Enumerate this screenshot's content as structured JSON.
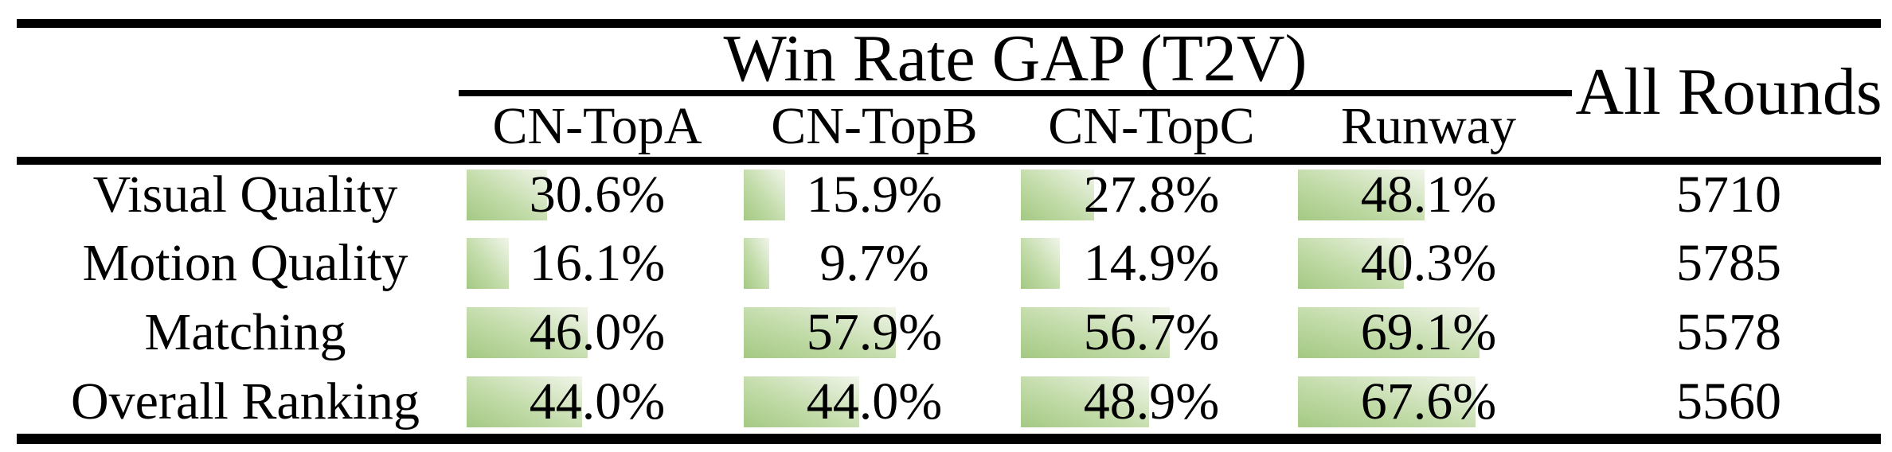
{
  "table": {
    "group_header": "Win Rate GAP (T2V)",
    "all_rounds_header": "All Rounds",
    "columns": [
      "CN-TopA",
      "CN-TopB",
      "CN-TopC",
      "Runway"
    ],
    "rows": [
      {
        "label": "Visual Quality",
        "cells": [
          {
            "pct": 30.6,
            "text": "30.6%"
          },
          {
            "pct": 15.9,
            "text": "15.9%"
          },
          {
            "pct": 27.8,
            "text": "27.8%"
          },
          {
            "pct": 48.1,
            "text": "48.1%"
          }
        ],
        "all_rounds": "5710"
      },
      {
        "label": "Motion Quality",
        "cells": [
          {
            "pct": 16.1,
            "text": "16.1%"
          },
          {
            "pct": 9.7,
            "text": "9.7%"
          },
          {
            "pct": 14.9,
            "text": "14.9%"
          },
          {
            "pct": 40.3,
            "text": "40.3%"
          }
        ],
        "all_rounds": "5785"
      },
      {
        "label": "Matching",
        "cells": [
          {
            "pct": 46.0,
            "text": "46.0%"
          },
          {
            "pct": 57.9,
            "text": "57.9%"
          },
          {
            "pct": 56.7,
            "text": "56.7%"
          },
          {
            "pct": 69.1,
            "text": "69.1%"
          }
        ],
        "all_rounds": "5578"
      },
      {
        "label": "Overall Ranking",
        "cells": [
          {
            "pct": 44.0,
            "text": "44.0%"
          },
          {
            "pct": 44.0,
            "text": "44.0%"
          },
          {
            "pct": 48.9,
            "text": "48.9%"
          },
          {
            "pct": 67.6,
            "text": "67.6%"
          }
        ],
        "all_rounds": "5560"
      }
    ],
    "colors": {
      "bar_gradient_start": "#a4c983",
      "bar_gradient_end": "#f1f5ea",
      "rule_color": "#000000",
      "text_color": "#000000",
      "background": "#ffffff"
    }
  },
  "chart_data": {
    "type": "table",
    "title": "Win Rate GAP (T2V)",
    "columns": [
      "CN-TopA",
      "CN-TopB",
      "CN-TopC",
      "Runway",
      "All Rounds"
    ],
    "row_labels": [
      "Visual Quality",
      "Motion Quality",
      "Matching",
      "Overall Ranking"
    ],
    "rows": [
      [
        30.6,
        15.9,
        27.8,
        48.1,
        5710
      ],
      [
        16.1,
        9.7,
        14.9,
        40.3,
        5785
      ],
      [
        46.0,
        57.9,
        56.7,
        69.1,
        5578
      ],
      [
        44.0,
        44.0,
        48.9,
        67.6,
        5560
      ]
    ],
    "cell_bar_unit": "percent",
    "legend_position": "none",
    "grid": false
  }
}
